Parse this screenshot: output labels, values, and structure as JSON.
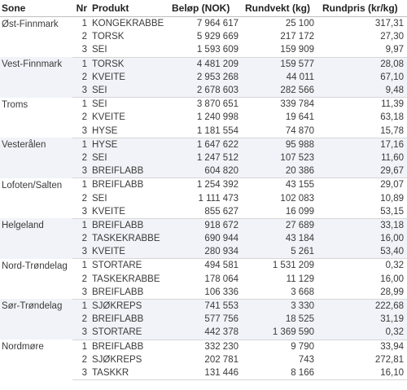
{
  "table": {
    "headers": {
      "sone": "Sone",
      "nr": "Nr",
      "produkt": "Produkt",
      "belop": "Beløp (NOK)",
      "rundvekt": "Rundvekt (kg)",
      "rundpris": "Rundpris (kr/kg)"
    },
    "groups": [
      {
        "sone": "Øst-Finnmark",
        "rows": [
          {
            "nr": "1",
            "produkt": "KONGEKRABBE",
            "belop": "7 964 617",
            "rundvekt": "25 100",
            "rundpris": "317,31"
          },
          {
            "nr": "2",
            "produkt": "TORSK",
            "belop": "5 929 669",
            "rundvekt": "217 172",
            "rundpris": "27,30"
          },
          {
            "nr": "3",
            "produkt": "SEI",
            "belop": "1 593 609",
            "rundvekt": "159 909",
            "rundpris": "9,97"
          }
        ]
      },
      {
        "sone": "Vest-Finnmark",
        "rows": [
          {
            "nr": "1",
            "produkt": "TORSK",
            "belop": "4 481 209",
            "rundvekt": "159 577",
            "rundpris": "28,08"
          },
          {
            "nr": "2",
            "produkt": "KVEITE",
            "belop": "2 953 268",
            "rundvekt": "44 011",
            "rundpris": "67,10"
          },
          {
            "nr": "3",
            "produkt": "SEI",
            "belop": "2 678 603",
            "rundvekt": "282 566",
            "rundpris": "9,48"
          }
        ]
      },
      {
        "sone": "Troms",
        "rows": [
          {
            "nr": "1",
            "produkt": "SEI",
            "belop": "3 870 651",
            "rundvekt": "339 784",
            "rundpris": "11,39"
          },
          {
            "nr": "2",
            "produkt": "KVEITE",
            "belop": "1 240 998",
            "rundvekt": "19 641",
            "rundpris": "63,18"
          },
          {
            "nr": "3",
            "produkt": "HYSE",
            "belop": "1 181 554",
            "rundvekt": "74 870",
            "rundpris": "15,78"
          }
        ]
      },
      {
        "sone": "Vesterålen",
        "rows": [
          {
            "nr": "1",
            "produkt": "HYSE",
            "belop": "1 647 622",
            "rundvekt": "95 988",
            "rundpris": "17,16"
          },
          {
            "nr": "2",
            "produkt": "SEI",
            "belop": "1 247 512",
            "rundvekt": "107 523",
            "rundpris": "11,60"
          },
          {
            "nr": "3",
            "produkt": "BREIFLABB",
            "belop": "604 820",
            "rundvekt": "20 386",
            "rundpris": "29,67"
          }
        ]
      },
      {
        "sone": "Lofoten/Salten",
        "rows": [
          {
            "nr": "1",
            "produkt": "BREIFLABB",
            "belop": "1 254 392",
            "rundvekt": "43 155",
            "rundpris": "29,07"
          },
          {
            "nr": "2",
            "produkt": "SEI",
            "belop": "1 111 473",
            "rundvekt": "102 083",
            "rundpris": "10,89"
          },
          {
            "nr": "3",
            "produkt": "KVEITE",
            "belop": "855 627",
            "rundvekt": "16 099",
            "rundpris": "53,15"
          }
        ]
      },
      {
        "sone": "Helgeland",
        "rows": [
          {
            "nr": "1",
            "produkt": "BREIFLABB",
            "belop": "918 672",
            "rundvekt": "27 689",
            "rundpris": "33,18"
          },
          {
            "nr": "2",
            "produkt": "TASKEKRABBE",
            "belop": "690 944",
            "rundvekt": "43 184",
            "rundpris": "16,00"
          },
          {
            "nr": "3",
            "produkt": "KVEITE",
            "belop": "280 934",
            "rundvekt": "5 261",
            "rundpris": "53,40"
          }
        ]
      },
      {
        "sone": "Nord-Trøndelag",
        "rows": [
          {
            "nr": "1",
            "produkt": "STORTARE",
            "belop": "494 581",
            "rundvekt": "1 531 209",
            "rundpris": "0,32"
          },
          {
            "nr": "2",
            "produkt": "TASKEKRABBE",
            "belop": "178 064",
            "rundvekt": "11 129",
            "rundpris": "16,00"
          },
          {
            "nr": "3",
            "produkt": "BREIFLABB",
            "belop": "106 336",
            "rundvekt": "3 668",
            "rundpris": "28,99"
          }
        ]
      },
      {
        "sone": "Sør-Trøndelag",
        "rows": [
          {
            "nr": "1",
            "produkt": "SJØKREPS",
            "belop": "741 553",
            "rundvekt": "3 330",
            "rundpris": "222,68"
          },
          {
            "nr": "2",
            "produkt": "BREIFLABB",
            "belop": "577 756",
            "rundvekt": "18 525",
            "rundpris": "31,19"
          },
          {
            "nr": "3",
            "produkt": "STORTARE",
            "belop": "442 378",
            "rundvekt": "1 369 590",
            "rundpris": "0,32"
          }
        ]
      },
      {
        "sone": "Nordmøre",
        "rows": [
          {
            "nr": "1",
            "produkt": "BREIFLABB",
            "belop": "332 230",
            "rundvekt": "9 790",
            "rundpris": "33,94"
          },
          {
            "nr": "2",
            "produkt": "SJØKREPS",
            "belop": "202 781",
            "rundvekt": "743",
            "rundpris": "272,81"
          },
          {
            "nr": "3",
            "produkt": "TASKKR",
            "belop": "131 446",
            "rundvekt": "8 166",
            "rundpris": "16,10"
          }
        ]
      }
    ]
  }
}
